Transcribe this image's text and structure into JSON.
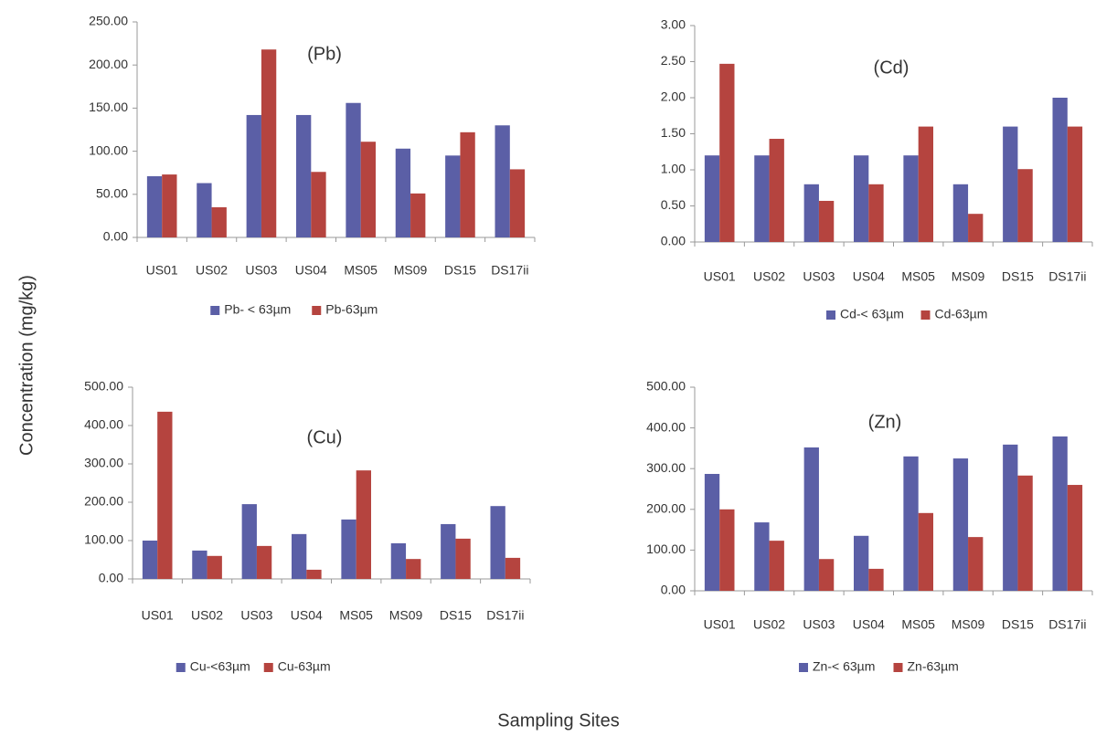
{
  "ylabel": "Concentration (mg/kg)",
  "xlabel": "Sampling Sites",
  "chart_data": [
    {
      "type": "bar",
      "title": "(Pb)",
      "categories": [
        "US01",
        "US02",
        "US03",
        "US04",
        "MS05",
        "MS09",
        "DS15",
        "DS17ii"
      ],
      "series": [
        {
          "name": "Pb- < 63µm",
          "color": "#5b5fa6",
          "values": [
            71,
            63,
            142,
            142,
            156,
            103,
            95,
            130
          ]
        },
        {
          "name": "Pb-63µm",
          "color": "#b5443f",
          "values": [
            73,
            35,
            218,
            76,
            111,
            51,
            122,
            79
          ]
        }
      ],
      "ylim": [
        0,
        250
      ],
      "yticks": [
        {
          "value": 0,
          "label": "0.00"
        },
        {
          "value": 50,
          "label": "50.00"
        },
        {
          "value": 100,
          "label": "100.00"
        },
        {
          "value": 150,
          "label": "150.00"
        },
        {
          "value": 200,
          "label": "200.00"
        },
        {
          "value": 250,
          "label": "250.00"
        }
      ],
      "grid": false,
      "legend": "bottom"
    },
    {
      "type": "bar",
      "title": "(Cd)",
      "categories": [
        "US01",
        "US02",
        "US03",
        "US04",
        "MS05",
        "MS09",
        "DS15",
        "DS17ii"
      ],
      "series": [
        {
          "name": "Cd-< 63µm",
          "color": "#5b5fa6",
          "values": [
            1.2,
            1.2,
            0.8,
            1.2,
            1.2,
            0.8,
            1.6,
            2.0
          ]
        },
        {
          "name": "Cd-63µm",
          "color": "#b5443f",
          "values": [
            2.47,
            1.43,
            0.57,
            0.8,
            1.6,
            0.39,
            1.01,
            1.6
          ]
        }
      ],
      "ylim": [
        0,
        3
      ],
      "yticks": [
        {
          "value": 0,
          "label": "0.00"
        },
        {
          "value": 0.5,
          "label": "0.50"
        },
        {
          "value": 1,
          "label": "1.00"
        },
        {
          "value": 1.5,
          "label": "1.50"
        },
        {
          "value": 2,
          "label": "2.00"
        },
        {
          "value": 2.5,
          "label": "2.50"
        },
        {
          "value": 3,
          "label": "3.00"
        }
      ],
      "grid": false,
      "legend": "bottom"
    },
    {
      "type": "bar",
      "title": "(Cu)",
      "categories": [
        "US01",
        "US02",
        "US03",
        "US04",
        "MS05",
        "MS09",
        "DS15",
        "DS17ii"
      ],
      "series": [
        {
          "name": "Cu-<63µm",
          "color": "#5b5fa6",
          "values": [
            100,
            74,
            195,
            117,
            155,
            93,
            143,
            190
          ]
        },
        {
          "name": "Cu-63µm",
          "color": "#b5443f",
          "values": [
            436,
            60,
            86,
            24,
            283,
            52,
            105,
            55
          ]
        }
      ],
      "ylim": [
        0,
        500
      ],
      "yticks": [
        {
          "value": 0,
          "label": "0.00"
        },
        {
          "value": 100,
          "label": "100.00"
        },
        {
          "value": 200,
          "label": "200.00"
        },
        {
          "value": 300,
          "label": "300.00"
        },
        {
          "value": 400,
          "label": "400.00"
        },
        {
          "value": 500,
          "label": "500.00"
        }
      ],
      "grid": false,
      "legend": "bottom"
    },
    {
      "type": "bar",
      "title": "(Zn)",
      "categories": [
        "US01",
        "US02",
        "US03",
        "US04",
        "MS05",
        "MS09",
        "DS15",
        "DS17ii"
      ],
      "series": [
        {
          "name": "Zn-< 63µm",
          "color": "#5b5fa6",
          "values": [
            287,
            168,
            352,
            135,
            330,
            325,
            359,
            379
          ]
        },
        {
          "name": "Zn-63µm",
          "color": "#b5443f",
          "values": [
            200,
            123,
            78,
            54,
            191,
            132,
            283,
            260
          ]
        }
      ],
      "ylim": [
        0,
        500
      ],
      "yticks": [
        {
          "value": 0,
          "label": "0.00"
        },
        {
          "value": 100,
          "label": "100.00"
        },
        {
          "value": 200,
          "label": "200.00"
        },
        {
          "value": 300,
          "label": "300.00"
        },
        {
          "value": 400,
          "label": "400.00"
        },
        {
          "value": 500,
          "label": "500.00"
        }
      ],
      "grid": false,
      "legend": "bottom"
    }
  ]
}
